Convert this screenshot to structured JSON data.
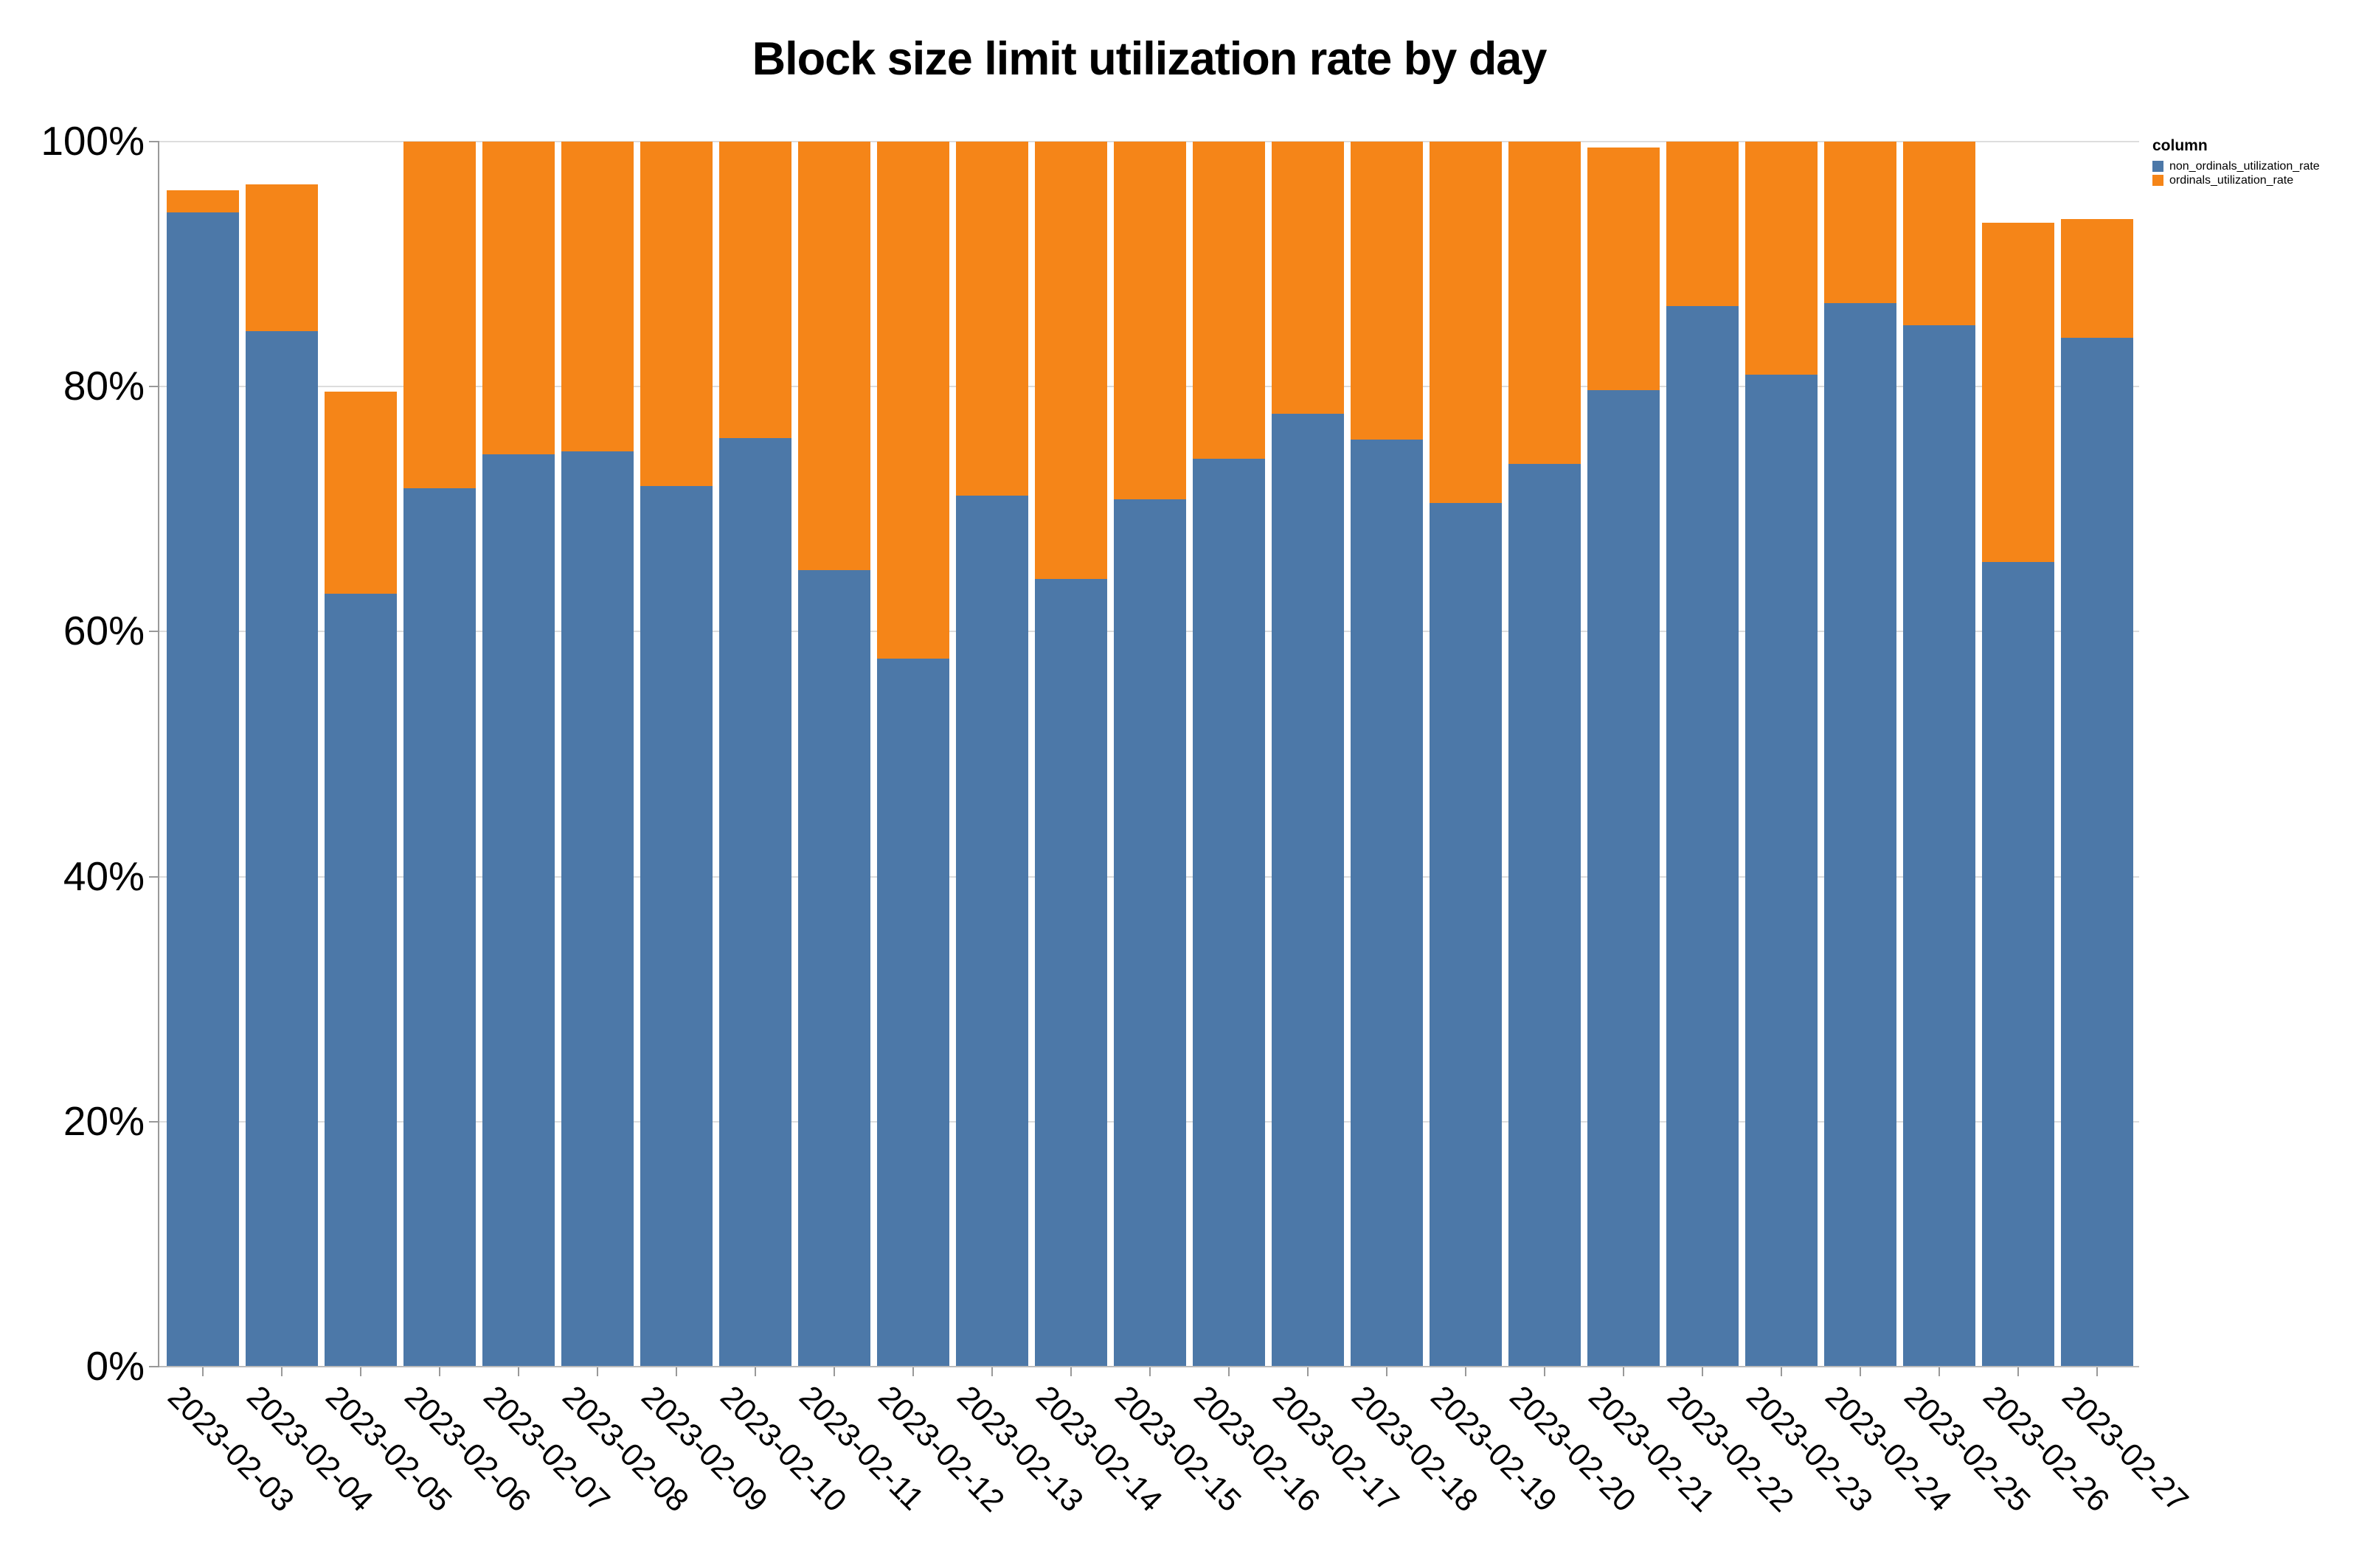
{
  "title": "Block size limit utilization rate by day",
  "legend": {
    "title": "column",
    "entries": [
      {
        "label": "non_ordinals_utilization_rate",
        "color": "#4c78a8"
      },
      {
        "label": "ordinals_utilization_rate",
        "color": "#f58518"
      }
    ]
  },
  "colors": {
    "non_ordinals": "#4c78a8",
    "ordinals": "#f58518",
    "gridline": "#dddddd",
    "axis": "#999999",
    "text": "#000000",
    "background": "#ffffff"
  },
  "chart_data": {
    "type": "bar",
    "stacked": true,
    "title": "Block size limit utilization rate by day",
    "xlabel": "",
    "ylabel": "",
    "ylim": [
      0,
      100
    ],
    "y_unit": "%",
    "y_ticks": [
      0,
      20,
      40,
      60,
      80,
      100
    ],
    "y_tick_labels": [
      "0%",
      "20%",
      "40%",
      "60%",
      "80%",
      "100%"
    ],
    "grid": true,
    "legend_position": "top-right",
    "categories": [
      "2023-02-03",
      "2023-02-04",
      "2023-02-05",
      "2023-02-06",
      "2023-02-07",
      "2023-02-08",
      "2023-02-09",
      "2023-02-10",
      "2023-02-11",
      "2023-02-12",
      "2023-02-13",
      "2023-02-14",
      "2023-02-15",
      "2023-02-16",
      "2023-02-17",
      "2023-02-18",
      "2023-02-19",
      "2023-02-20",
      "2023-02-21",
      "2023-02-22",
      "2023-02-23",
      "2023-02-24",
      "2023-02-25",
      "2023-02-26",
      "2023-02-27"
    ],
    "series": [
      {
        "name": "non_ordinals_utilization_rate",
        "color": "#4c78a8",
        "values": [
          94.2,
          84.5,
          63.1,
          71.7,
          74.5,
          74.7,
          71.9,
          75.8,
          65.0,
          57.8,
          71.1,
          64.3,
          70.8,
          74.1,
          77.8,
          75.7,
          70.5,
          73.7,
          79.7,
          86.6,
          81.0,
          86.8,
          85.0,
          65.7,
          84.0
        ]
      },
      {
        "name": "ordinals_utilization_rate",
        "color": "#f58518",
        "values": [
          1.8,
          12.0,
          16.5,
          28.3,
          25.5,
          25.3,
          28.1,
          24.2,
          35.0,
          42.2,
          28.9,
          35.7,
          29.2,
          25.9,
          22.2,
          24.3,
          29.5,
          26.3,
          19.8,
          13.4,
          19.0,
          13.2,
          15.0,
          27.7,
          9.7
        ]
      }
    ],
    "totals": [
      96.0,
      96.5,
      79.6,
      100,
      100,
      100,
      100,
      100,
      100,
      100,
      100,
      100,
      100,
      100,
      100,
      100,
      100,
      100,
      99.5,
      100,
      100,
      100,
      100,
      93.4,
      93.7
    ]
  }
}
